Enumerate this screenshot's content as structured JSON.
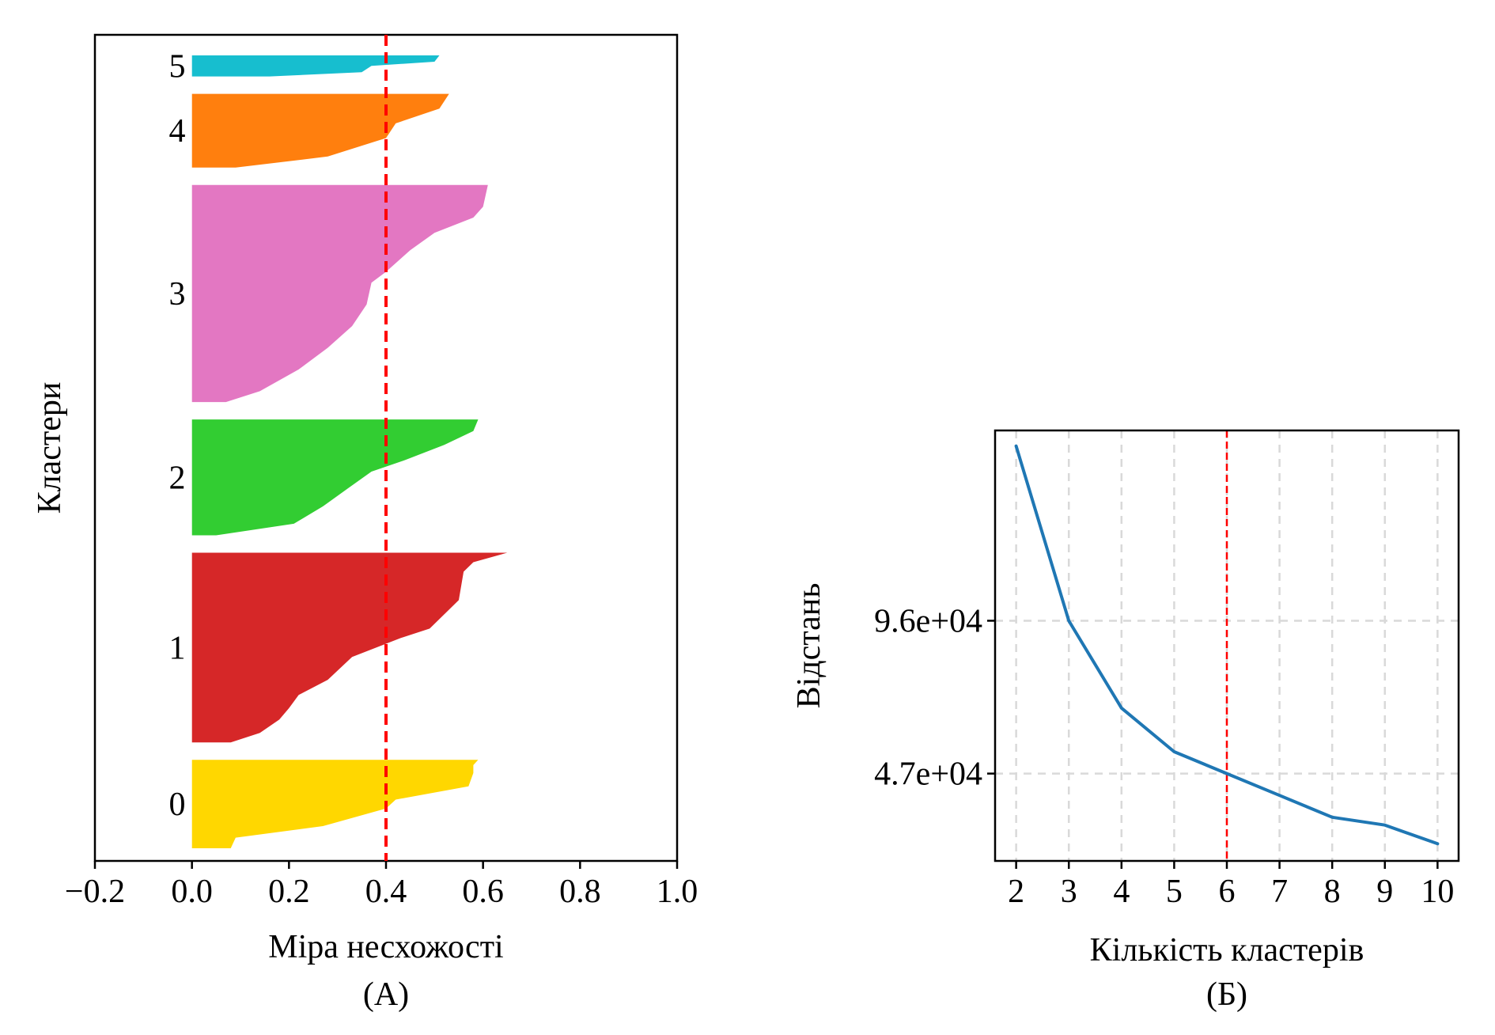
{
  "chart_data": [
    {
      "type": "area",
      "panel_caption": "(А)",
      "xlabel": "Міра несхожості",
      "ylabel": "Кластери",
      "xlim": [
        -0.2,
        1.0
      ],
      "xticks": [
        "−0.2",
        "0.0",
        "0.2",
        "0.4",
        "0.6",
        "0.8",
        "1.0"
      ],
      "xtick_values": [
        -0.2,
        0.0,
        0.2,
        0.4,
        0.6,
        0.8,
        1.0
      ],
      "grid": false,
      "reference_line": {
        "x": 0.4,
        "color": "#ff0000",
        "style": "dashed"
      },
      "clusters": [
        {
          "label": "0",
          "color": "#ffd700",
          "size": 42,
          "profile": [
            [
              0.0,
              0.08
            ],
            [
              0.12,
              0.09
            ],
            [
              0.25,
              0.27
            ],
            [
              0.45,
              0.4
            ],
            [
              0.55,
              0.42
            ],
            [
              0.7,
              0.57
            ],
            [
              0.85,
              0.58
            ],
            [
              0.94,
              0.58
            ],
            [
              1.0,
              0.59
            ]
          ]
        },
        {
          "label": "1",
          "color": "#d62728",
          "size": 90,
          "profile": [
            [
              0.0,
              0.08
            ],
            [
              0.05,
              0.14
            ],
            [
              0.12,
              0.18
            ],
            [
              0.18,
              0.2
            ],
            [
              0.25,
              0.22
            ],
            [
              0.33,
              0.28
            ],
            [
              0.45,
              0.33
            ],
            [
              0.55,
              0.43
            ],
            [
              0.6,
              0.49
            ],
            [
              0.75,
              0.55
            ],
            [
              0.9,
              0.56
            ],
            [
              0.95,
              0.58
            ],
            [
              1.0,
              0.65
            ]
          ]
        },
        {
          "label": "2",
          "color": "#32cd32",
          "size": 55,
          "profile": [
            [
              0.0,
              0.05
            ],
            [
              0.1,
              0.21
            ],
            [
              0.25,
              0.27
            ],
            [
              0.4,
              0.32
            ],
            [
              0.55,
              0.37
            ],
            [
              0.65,
              0.44
            ],
            [
              0.78,
              0.52
            ],
            [
              0.9,
              0.58
            ],
            [
              1.0,
              0.59
            ]
          ]
        },
        {
          "label": "3",
          "color": "#e377c2",
          "size": 103,
          "profile": [
            [
              0.0,
              0.07
            ],
            [
              0.05,
              0.14
            ],
            [
              0.15,
              0.22
            ],
            [
              0.25,
              0.28
            ],
            [
              0.35,
              0.33
            ],
            [
              0.45,
              0.36
            ],
            [
              0.55,
              0.37
            ],
            [
              0.6,
              0.4
            ],
            [
              0.7,
              0.45
            ],
            [
              0.78,
              0.5
            ],
            [
              0.85,
              0.58
            ],
            [
              0.9,
              0.6
            ],
            [
              1.0,
              0.61
            ]
          ]
        },
        {
          "label": "4",
          "color": "#ff7f0e",
          "size": 35,
          "profile": [
            [
              0.0,
              0.09
            ],
            [
              0.15,
              0.28
            ],
            [
              0.4,
              0.4
            ],
            [
              0.6,
              0.42
            ],
            [
              0.8,
              0.51
            ],
            [
              1.0,
              0.53
            ]
          ]
        },
        {
          "label": "5",
          "color": "#17becf",
          "size": 10,
          "profile": [
            [
              0.0,
              0.16
            ],
            [
              0.2,
              0.35
            ],
            [
              0.5,
              0.37
            ],
            [
              0.7,
              0.5
            ],
            [
              1.0,
              0.51
            ]
          ]
        }
      ]
    },
    {
      "type": "line",
      "panel_caption": "(Б)",
      "xlabel": "Кількість кластерів",
      "ylabel": "Відстань",
      "x": [
        2,
        3,
        4,
        5,
        6,
        7,
        8,
        9,
        10
      ],
      "series": [
        {
          "values": [
            152000,
            96000,
            68000,
            54000,
            47000,
            40000,
            33000,
            30500,
            24500
          ],
          "color": "#1f77b4"
        }
      ],
      "xlim": [
        1.6,
        10.4
      ],
      "ylim": [
        19000,
        157000
      ],
      "xticks": [
        "2",
        "3",
        "4",
        "5",
        "6",
        "7",
        "8",
        "9",
        "10"
      ],
      "yticks": [
        "4.7e+04",
        "9.6e+04"
      ],
      "ytick_values": [
        47000,
        96000
      ],
      "grid": true,
      "reference_line": {
        "x": 6,
        "color": "#ff0000",
        "style": "dashed"
      }
    }
  ]
}
